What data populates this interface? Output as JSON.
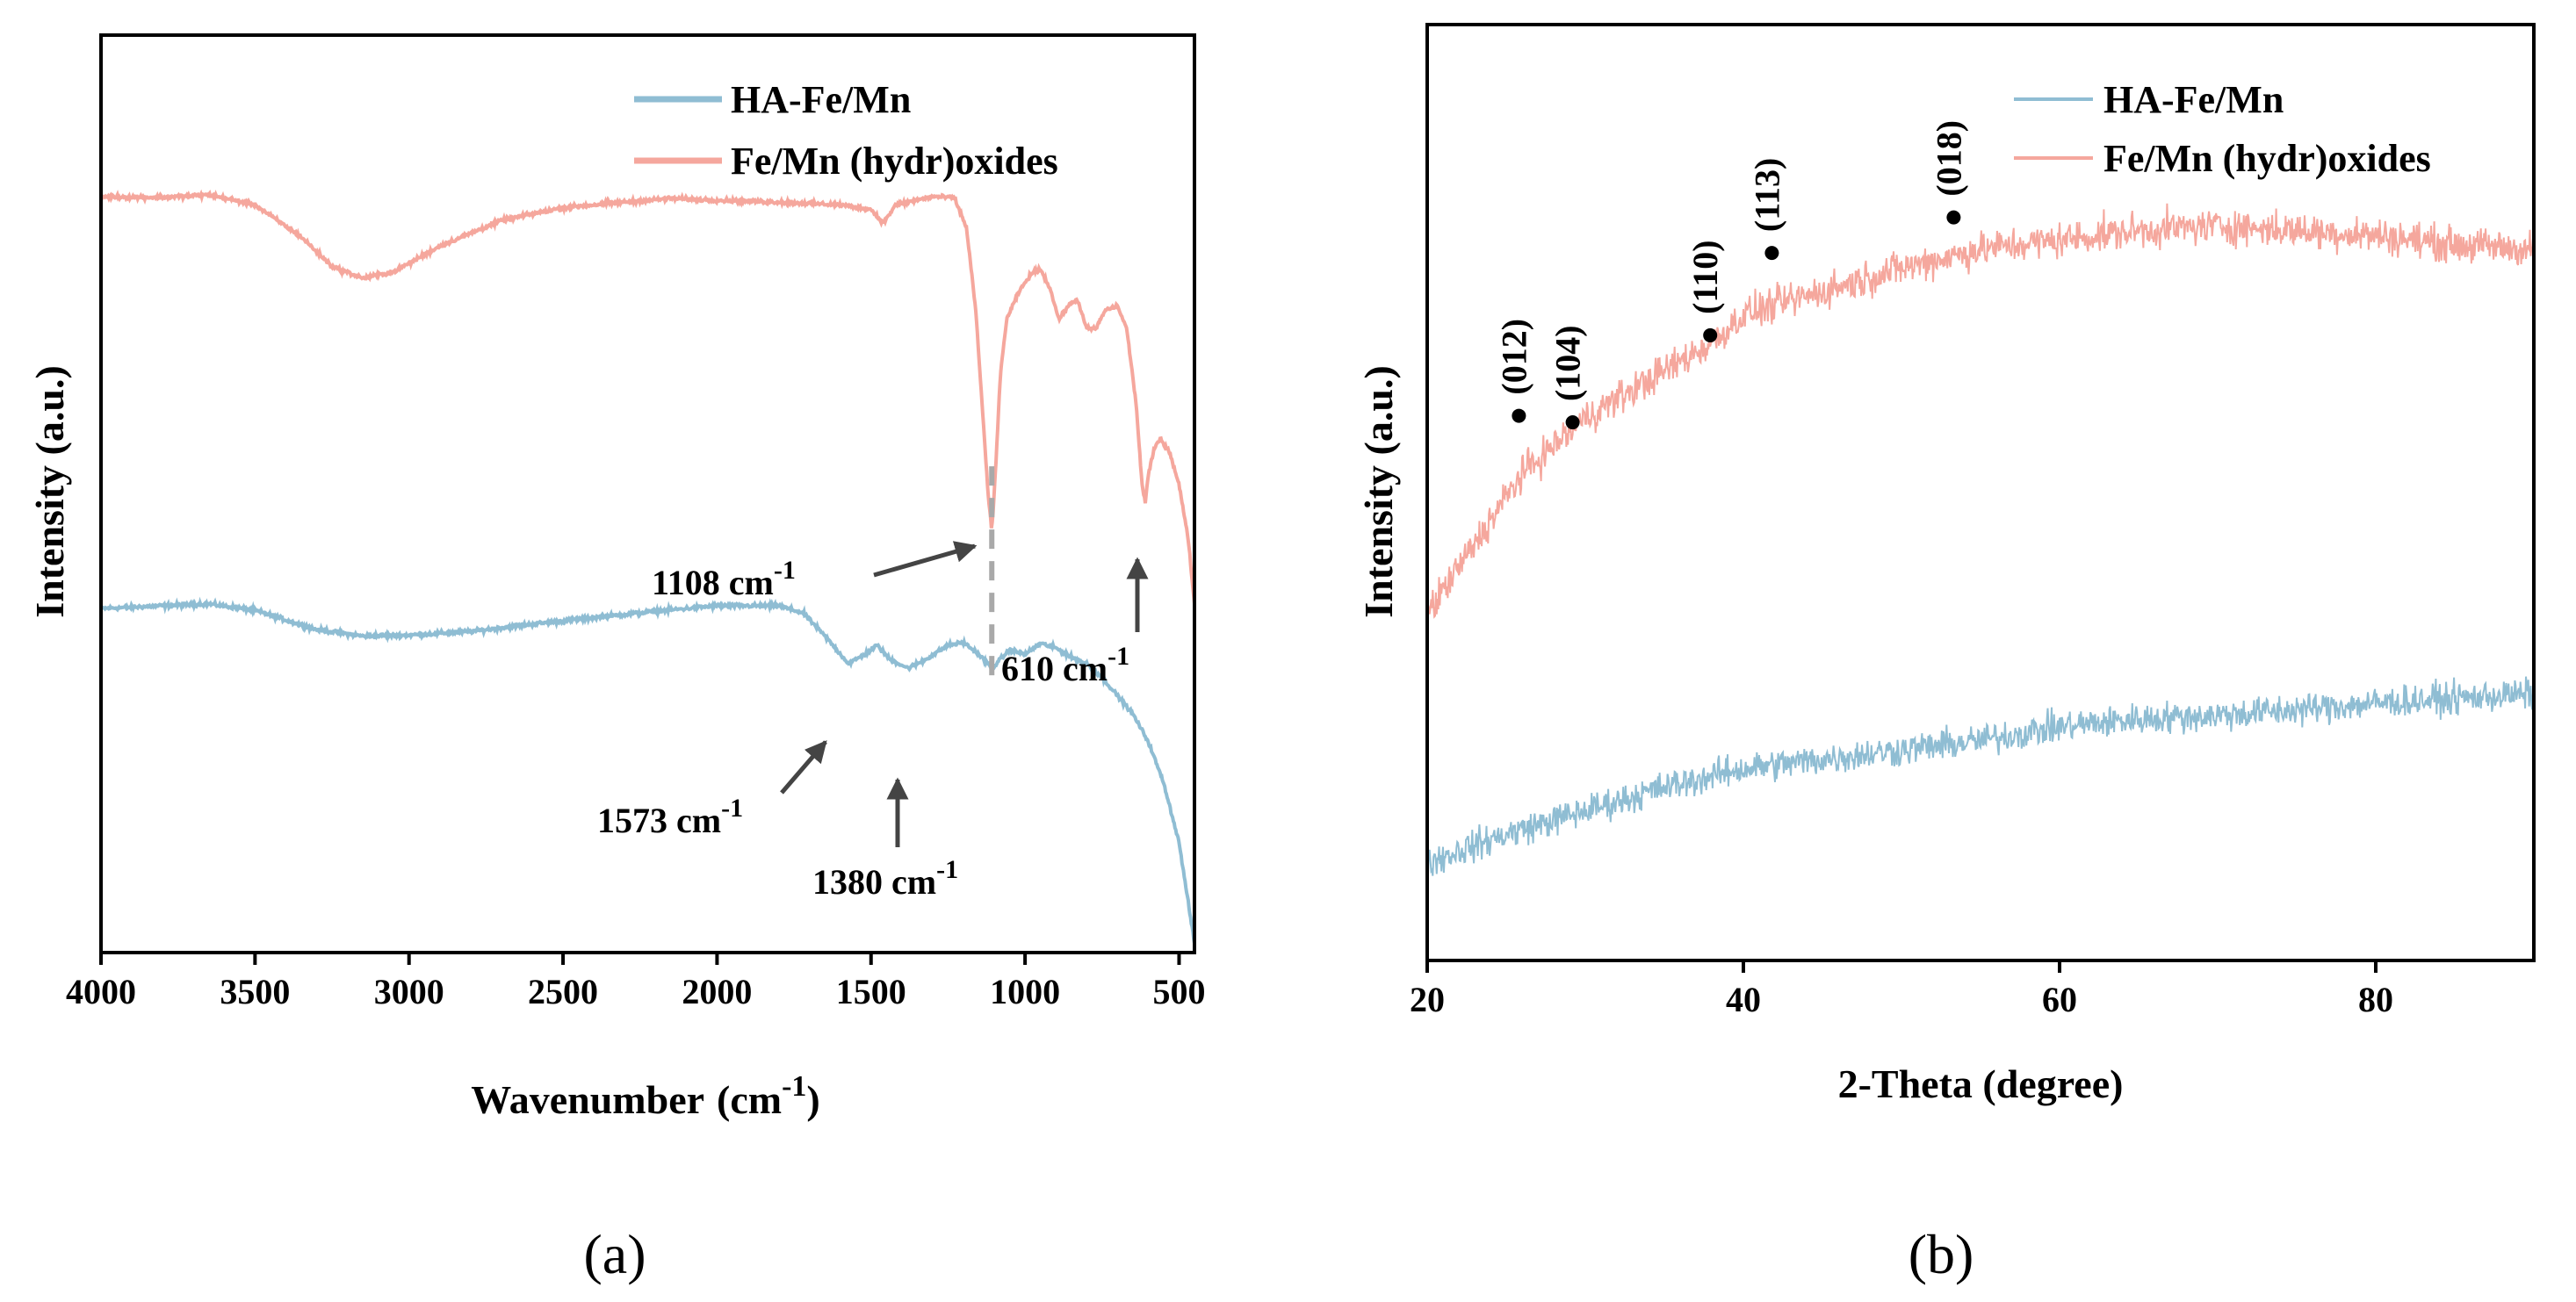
{
  "chart_data": [
    {
      "panel": "(a)",
      "type": "line",
      "xlabel": "Wavenumber",
      "xlabel_unit_base": "(cm",
      "xlabel_unit_sup": "-1",
      "xlabel_unit_close": ")",
      "ylabel": "Intensity (a.u.)",
      "xlim": [
        4000,
        450
      ],
      "ylim": [
        0,
        1
      ],
      "x_reversed": true,
      "x_ticks": [
        4000,
        3500,
        3000,
        2500,
        2000,
        1500,
        1000,
        500
      ],
      "legend_position": "top-right",
      "series": [
        {
          "name": "HA-Fe/Mn",
          "color": "#8fbdd3",
          "noise": 0.003,
          "points": [
            [
              4000,
              0.375
            ],
            [
              3800,
              0.378
            ],
            [
              3650,
              0.38
            ],
            [
              3500,
              0.373
            ],
            [
              3300,
              0.352
            ],
            [
              3150,
              0.345
            ],
            [
              3000,
              0.346
            ],
            [
              2800,
              0.35
            ],
            [
              2600,
              0.358
            ],
            [
              2400,
              0.365
            ],
            [
              2200,
              0.372
            ],
            [
              2000,
              0.378
            ],
            [
              1800,
              0.378
            ],
            [
              1720,
              0.37
            ],
            [
              1650,
              0.345
            ],
            [
              1573,
              0.315
            ],
            [
              1520,
              0.325
            ],
            [
              1480,
              0.335
            ],
            [
              1440,
              0.32
            ],
            [
              1380,
              0.31
            ],
            [
              1330,
              0.318
            ],
            [
              1250,
              0.335
            ],
            [
              1200,
              0.338
            ],
            [
              1150,
              0.325
            ],
            [
              1108,
              0.31
            ],
            [
              1050,
              0.33
            ],
            [
              1000,
              0.325
            ],
            [
              950,
              0.337
            ],
            [
              900,
              0.332
            ],
            [
              850,
              0.322
            ],
            [
              800,
              0.315
            ],
            [
              750,
              0.3
            ],
            [
              700,
              0.28
            ],
            [
              650,
              0.26
            ],
            [
              600,
              0.23
            ],
            [
              550,
              0.185
            ],
            [
              500,
              0.12
            ],
            [
              450,
              0.01
            ]
          ]
        },
        {
          "name": "Fe/Mn (hydr)oxides",
          "color": "#f5a79d",
          "noise": 0.003,
          "points": [
            [
              4000,
              0.824
            ],
            [
              3800,
              0.823
            ],
            [
              3650,
              0.826
            ],
            [
              3500,
              0.815
            ],
            [
              3350,
              0.78
            ],
            [
              3250,
              0.748
            ],
            [
              3150,
              0.735
            ],
            [
              3050,
              0.742
            ],
            [
              2900,
              0.77
            ],
            [
              2700,
              0.798
            ],
            [
              2500,
              0.812
            ],
            [
              2300,
              0.818
            ],
            [
              2150,
              0.822
            ],
            [
              2000,
              0.82
            ],
            [
              1800,
              0.818
            ],
            [
              1600,
              0.815
            ],
            [
              1500,
              0.81
            ],
            [
              1460,
              0.795
            ],
            [
              1420,
              0.815
            ],
            [
              1300,
              0.824
            ],
            [
              1230,
              0.823
            ],
            [
              1190,
              0.79
            ],
            [
              1160,
              0.7
            ],
            [
              1140,
              0.6
            ],
            [
              1120,
              0.5
            ],
            [
              1108,
              0.46
            ],
            [
              1095,
              0.53
            ],
            [
              1080,
              0.63
            ],
            [
              1060,
              0.69
            ],
            [
              1020,
              0.72
            ],
            [
              980,
              0.74
            ],
            [
              950,
              0.745
            ],
            [
              920,
              0.725
            ],
            [
              890,
              0.69
            ],
            [
              860,
              0.705
            ],
            [
              830,
              0.712
            ],
            [
              800,
              0.68
            ],
            [
              770,
              0.68
            ],
            [
              740,
              0.7
            ],
            [
              700,
              0.705
            ],
            [
              670,
              0.68
            ],
            [
              640,
              0.6
            ],
            [
              620,
              0.51
            ],
            [
              610,
              0.49
            ],
            [
              600,
              0.52
            ],
            [
              580,
              0.55
            ],
            [
              560,
              0.56
            ],
            [
              530,
              0.545
            ],
            [
              500,
              0.51
            ],
            [
              470,
              0.45
            ],
            [
              450,
              0.38
            ]
          ]
        }
      ],
      "annotations": [
        {
          "label": "1108 cm",
          "sup": "-1",
          "x": 1108
        },
        {
          "label": "610 cm",
          "sup": "-1",
          "x": 610
        },
        {
          "label": "1573 cm",
          "sup": "-1",
          "x": 1573
        },
        {
          "label": "1380 cm",
          "sup": "-1",
          "x": 1380
        }
      ]
    },
    {
      "panel": "(b)",
      "type": "line",
      "xlabel": "2-Theta (degree)",
      "ylabel": "Intensity (a.u.)",
      "xlim": [
        20,
        90
      ],
      "ylim": [
        0,
        1
      ],
      "x_ticks": [
        20,
        40,
        60,
        80
      ],
      "legend_position": "top-right",
      "series": [
        {
          "name": "HA-Fe/Mn",
          "color": "#8fbdd3",
          "noise": 0.025,
          "points": [
            [
              20,
              0.105
            ],
            [
              25,
              0.135
            ],
            [
              30,
              0.16
            ],
            [
              35,
              0.185
            ],
            [
              40,
              0.205
            ],
            [
              45,
              0.215
            ],
            [
              50,
              0.225
            ],
            [
              55,
              0.235
            ],
            [
              60,
              0.25
            ],
            [
              65,
              0.258
            ],
            [
              70,
              0.262
            ],
            [
              75,
              0.268
            ],
            [
              80,
              0.275
            ],
            [
              85,
              0.28
            ],
            [
              90,
              0.285
            ]
          ]
        },
        {
          "name": "Fe/Mn (hydr)oxides",
          "color": "#f5a79d",
          "noise": 0.028,
          "points": [
            [
              20,
              0.37
            ],
            [
              22,
              0.42
            ],
            [
              24,
              0.47
            ],
            [
              26,
              0.52
            ],
            [
              28,
              0.55
            ],
            [
              30,
              0.58
            ],
            [
              32,
              0.6
            ],
            [
              34,
              0.62
            ],
            [
              36,
              0.64
            ],
            [
              38,
              0.66
            ],
            [
              40,
              0.69
            ],
            [
              42,
              0.7
            ],
            [
              44,
              0.71
            ],
            [
              46,
              0.72
            ],
            [
              50,
              0.74
            ],
            [
              55,
              0.76
            ],
            [
              60,
              0.77
            ],
            [
              65,
              0.78
            ],
            [
              70,
              0.785
            ],
            [
              75,
              0.78
            ],
            [
              80,
              0.775
            ],
            [
              85,
              0.765
            ],
            [
              90,
              0.76
            ]
          ]
        }
      ],
      "peak_markers": [
        {
          "label": "(012)",
          "x": 25.8,
          "y": 0.582
        },
        {
          "label": "(104)",
          "x": 29.2,
          "y": 0.575
        },
        {
          "label": "(110)",
          "x": 37.9,
          "y": 0.668
        },
        {
          "label": "(113)",
          "x": 41.8,
          "y": 0.756
        },
        {
          "label": "(018)",
          "x": 53.3,
          "y": 0.794
        }
      ]
    }
  ]
}
